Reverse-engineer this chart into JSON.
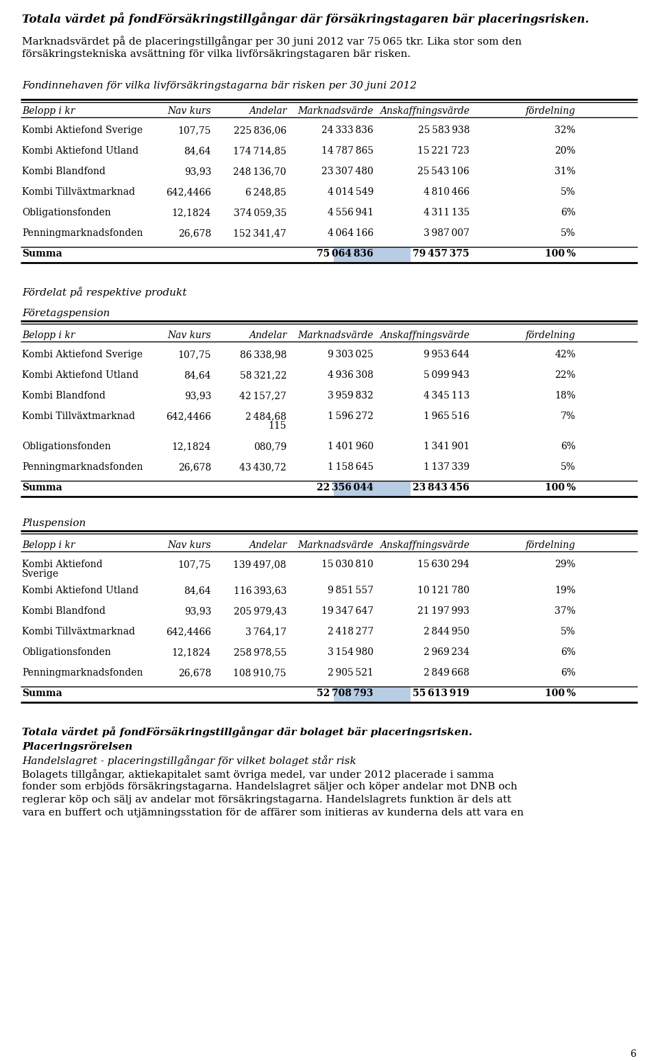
{
  "title_bold": "Totala värdet på fondFörsäkringstillgångar där försäkringstagaren bär placeringsrisken.",
  "intro_line1": "Marknadsvärdet på de placeringstillgångar per 30 juni 2012 var 75 065 tkr. Lika stor som den",
  "intro_line2": "försäkringstekniska avsättning för vilka livförsäkringstagaren bär risken.",
  "section1_title": "Fondinnehaven för vilka livförsäkringstagarna bär risken per 30 juni 2012",
  "col_headers": [
    "Belopp i kr",
    "Nav kurs",
    "Andelar",
    "Marknadsvärde",
    "Anskaffningsvärde",
    "fördelning"
  ],
  "table1_rows": [
    [
      "Kombi Aktiefond Sverige",
      "107,75",
      "225 836,06",
      "24 333 836",
      "25 583 938",
      "32%"
    ],
    [
      "Kombi Aktiefond Utland",
      "84,64",
      "174 714,85",
      "14 787 865",
      "15 221 723",
      "20%"
    ],
    [
      "Kombi Blandfond",
      "93,93",
      "248 136,70",
      "23 307 480",
      "25 543 106",
      "31%"
    ],
    [
      "Kombi Tillväxtmarknad",
      "642,4466",
      "6 248,85",
      "4 014 549",
      "4 810 466",
      "5%"
    ],
    [
      "Obligationsfonden",
      "12,1824",
      "374 059,35",
      "4 556 941",
      "4 311 135",
      "6%"
    ],
    [
      "Penningmarknadsfonden",
      "26,678",
      "152 341,47",
      "4 064 166",
      "3 987 007",
      "5%"
    ]
  ],
  "table1_summa": [
    "Summa",
    "",
    "",
    "75 064 836",
    "79 457 375",
    "100 %"
  ],
  "section2_title": "Fördelat på respektive produkt",
  "section2a_title": "Företagspension",
  "table2_rows": [
    [
      "Kombi Aktiefond Sverige",
      "107,75",
      "86 338,98",
      "9 303 025",
      "9 953 644",
      "42%"
    ],
    [
      "Kombi Aktiefond Utland",
      "84,64",
      "58 321,22",
      "4 936 308",
      "5 099 943",
      "22%"
    ],
    [
      "Kombi Blandfond",
      "93,93",
      "42 157,27",
      "3 959 832",
      "4 345 113",
      "18%"
    ],
    [
      "Kombi Tillväxtmarknad",
      "642,4466",
      "2 484,68\n115",
      "1 596 272",
      "1 965 516",
      "7%"
    ],
    [
      "Obligationsfonden",
      "12,1824",
      "080,79",
      "1 401 960",
      "1 341 901",
      "6%"
    ],
    [
      "Penningmarknadsfonden",
      "26,678",
      "43 430,72",
      "1 158 645",
      "1 137 339",
      "5%"
    ]
  ],
  "table2_summa": [
    "Summa",
    "",
    "",
    "22 356 044",
    "23 843 456",
    "100 %"
  ],
  "section2b_title": "Pluspension",
  "table3_rows": [
    [
      "Kombi Aktiefond\nSverige",
      "107,75",
      "139 497,08",
      "15 030 810",
      "15 630 294",
      "29%"
    ],
    [
      "Kombi Aktiefond Utland",
      "84,64",
      "116 393,63",
      "9 851 557",
      "10 121 780",
      "19%"
    ],
    [
      "Kombi Blandfond",
      "93,93",
      "205 979,43",
      "19 347 647",
      "21 197 993",
      "37%"
    ],
    [
      "Kombi Tillväxtmarknad",
      "642,4466",
      "3 764,17",
      "2 418 277",
      "2 844 950",
      "5%"
    ],
    [
      "Obligationsfonden",
      "12,1824",
      "258 978,55",
      "3 154 980",
      "2 969 234",
      "6%"
    ],
    [
      "Penningmarknadsfonden",
      "26,678",
      "108 910,75",
      "2 905 521",
      "2 849 668",
      "6%"
    ]
  ],
  "table3_summa": [
    "Summa",
    "",
    "",
    "52 708 793",
    "55 613 919",
    "100 %"
  ],
  "footer_bold1": "Totala värdet på fondFörsäkringstillgångar där bolaget bär placeringsrisken.",
  "footer_bold2": "Placeringsrörelsen",
  "footer_italic": "Handelslagret - placeringstillgångar för vilket bolaget står risk",
  "footer_lines": [
    "Bolagets tillgångar, aktiekapitalet samt övriga medel, var under 2012 placerade i samma",
    "fonder som erbjöds försäkringstagarna. Handelslagret säljer och köper andelar mot DNB och",
    "reglerar köp och sälj av andelar mot försäkringstagarna. Handelslagrets funktion är dels att",
    "vara en buffert och utjämningsstation för de affärer som initieras av kunderna dels att vara en"
  ],
  "page_number": "6",
  "highlight_color": "#b8cce4",
  "bg_color": "#ffffff"
}
